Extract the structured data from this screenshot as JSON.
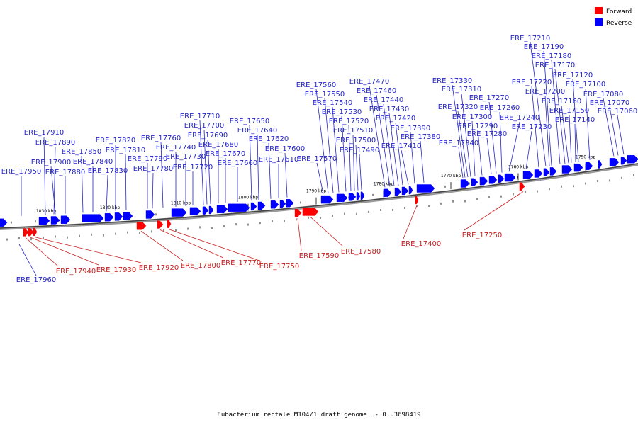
{
  "legend": {
    "forward": {
      "label": "Forward",
      "color": "#ff0000"
    },
    "reverse": {
      "label": "Reverse",
      "color": "#0000ff"
    }
  },
  "footer": "Eubacterium rectale M104/1 draft genome. - 0..3698419",
  "scale_ticks": [
    "1830 kbp",
    "1820 kbp",
    "1810 kbp",
    "1800 kbp",
    "1790 kbp",
    "1780 kbp",
    "1770 kbp",
    "1760 kbp",
    "1750 kbp"
  ],
  "reverse_genes": [
    "ERE_17960",
    "ERE_17950",
    "ERE_17910",
    "ERE_17890",
    "ERE_17900",
    "ERE_17880",
    "ERE_17850",
    "ERE_17840",
    "ERE_17830",
    "ERE_17820",
    "ERE_17810",
    "ERE_17790",
    "ERE_17780",
    "ERE_17760",
    "ERE_17740",
    "ERE_17730",
    "ERE_17720",
    "ERE_17710",
    "ERE_17700",
    "ERE_17690",
    "ERE_17680",
    "ERE_17670",
    "ERE_17660",
    "ERE_17650",
    "ERE_17640",
    "ERE_17620",
    "ERE_17610",
    "ERE_17600",
    "ERE_17570",
    "ERE_17560",
    "ERE_17550",
    "ERE_17540",
    "ERE_17530",
    "ERE_17520",
    "ERE_17510",
    "ERE_17500",
    "ERE_17490",
    "ERE_17470",
    "ERE_17460",
    "ERE_17440",
    "ERE_17430",
    "ERE_17420",
    "ERE_17410",
    "ERE_17390",
    "ERE_17380",
    "ERE_17340",
    "ERE_17330",
    "ERE_17320",
    "ERE_17310",
    "ERE_17300",
    "ERE_17290",
    "ERE_17280",
    "ERE_17270",
    "ERE_17260",
    "ERE_17240",
    "ERE_17230",
    "ERE_17220",
    "ERE_17210",
    "ERE_17200",
    "ERE_17190",
    "ERE_17180",
    "ERE_17170",
    "ERE_17160",
    "ERE_17150",
    "ERE_17140",
    "ERE_17120",
    "ERE_17100",
    "ERE_17080",
    "ERE_17070",
    "ERE_17060"
  ],
  "forward_genes": [
    "ERE_17940",
    "ERE_17930",
    "ERE_17920",
    "ERE_17800",
    "ERE_17770",
    "ERE_17750",
    "ERE_17590",
    "ERE_17580",
    "ERE_17400",
    "ERE_17250"
  ]
}
